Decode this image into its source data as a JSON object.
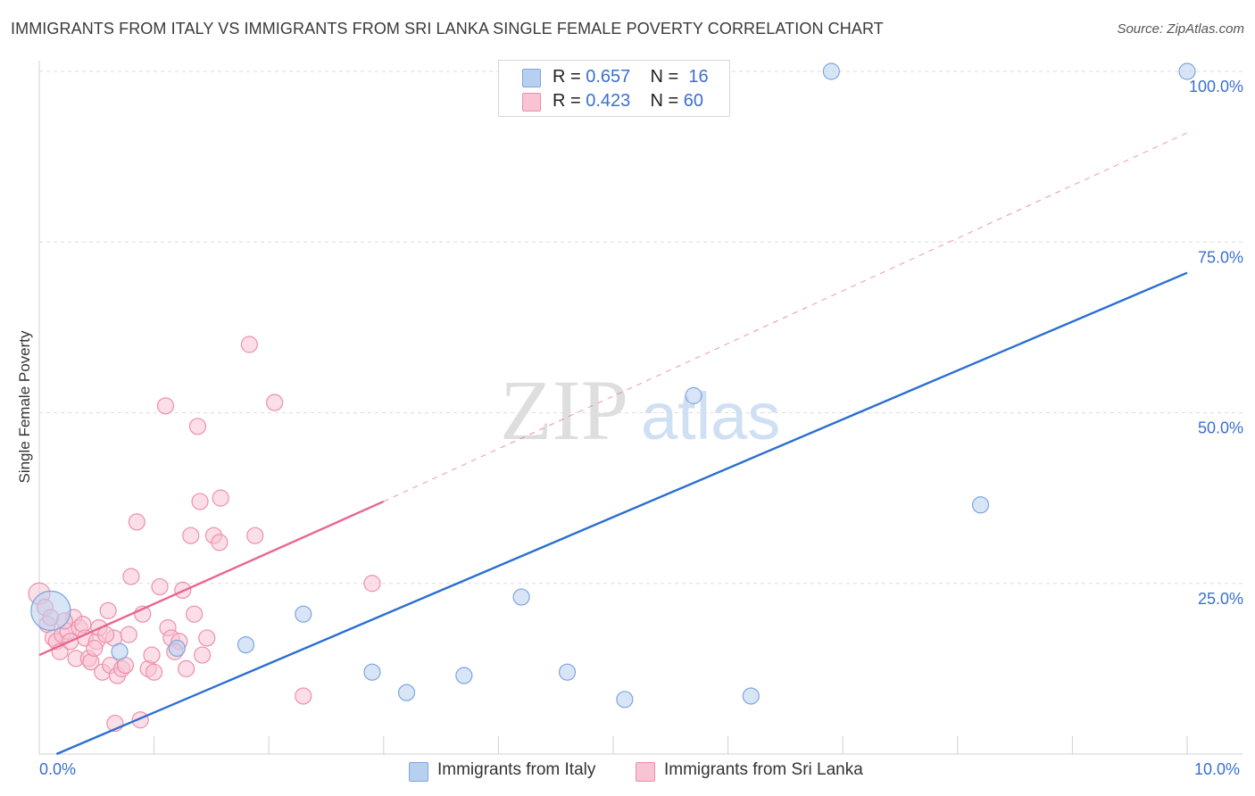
{
  "title": "IMMIGRANTS FROM ITALY VS IMMIGRANTS FROM SRI LANKA SINGLE FEMALE POVERTY CORRELATION CHART",
  "source": "Source: ZipAtlas.com",
  "watermark": {
    "zip": "ZIP",
    "atlas": "atlas"
  },
  "legend_top": {
    "rows": [
      {
        "r_label": "R =",
        "r_value": "0.657",
        "n_label": "N =",
        "n_value": "16"
      },
      {
        "r_label": "R =",
        "r_value": "0.423",
        "n_label": "N =",
        "n_value": "60"
      }
    ]
  },
  "legend_bottom": {
    "italy": "Immigrants from Italy",
    "srilanka": "Immigrants from Sri Lanka"
  },
  "colors": {
    "italy_fill": "#b8d0f0",
    "italy_stroke": "#7da6dc",
    "italy_line": "#2a6fd0",
    "srilanka_fill": "#f8c3d3",
    "srilanka_stroke": "#ec90ad",
    "srilanka_line": "#e8668f",
    "tick_text": "#3a6fd0",
    "grid": "#dedede"
  },
  "chart_data": {
    "type": "scatter",
    "title": "IMMIGRANTS FROM ITALY VS IMMIGRANTS FROM SRI LANKA SINGLE FEMALE POVERTY CORRELATION CHART",
    "xlabel": "",
    "ylabel": "Single Female Poverty",
    "xlim": [
      0,
      10
    ],
    "ylim": [
      0,
      100
    ],
    "x_tick_labels": [
      "0.0%",
      "10.0%"
    ],
    "y_ticks": [
      {
        "value": 25,
        "label": "25.0%"
      },
      {
        "value": 50,
        "label": "50.0%"
      },
      {
        "value": 75,
        "label": "75.0%"
      },
      {
        "value": 100,
        "label": "100.0%"
      }
    ],
    "series": [
      {
        "name": "Immigrants from Italy",
        "R": 0.657,
        "N": 16,
        "points": [
          [
            0.1,
            21.0,
            22
          ],
          [
            0.7,
            15.0,
            9
          ],
          [
            1.2,
            15.5,
            9
          ],
          [
            1.8,
            16.0,
            9
          ],
          [
            2.3,
            20.5,
            9
          ],
          [
            2.9,
            12.0,
            9
          ],
          [
            3.2,
            9.0,
            9
          ],
          [
            3.7,
            11.5,
            9
          ],
          [
            4.2,
            23.0,
            9
          ],
          [
            4.6,
            12.0,
            9
          ],
          [
            5.1,
            8.0,
            9
          ],
          [
            5.7,
            52.5,
            9
          ],
          [
            6.2,
            8.5,
            9
          ],
          [
            6.9,
            100.0,
            9
          ],
          [
            8.2,
            36.5,
            9
          ],
          [
            10.0,
            100.0,
            9
          ]
        ],
        "trendline": {
          "x0": 0.15,
          "y0": 0.0,
          "x1": 10.0,
          "y1": 70.5,
          "style": "solid"
        }
      },
      {
        "name": "Immigrants from Sri Lanka",
        "R": 0.423,
        "N": 60,
        "points": [
          [
            0.0,
            23.5,
            12
          ],
          [
            0.05,
            21.5,
            9
          ],
          [
            0.07,
            19.0,
            9
          ],
          [
            0.12,
            17.0,
            9
          ],
          [
            0.15,
            16.5,
            9
          ],
          [
            0.18,
            15.0,
            9
          ],
          [
            0.2,
            17.5,
            9
          ],
          [
            0.25,
            18.0,
            9
          ],
          [
            0.27,
            16.5,
            9
          ],
          [
            0.3,
            20.0,
            9
          ],
          [
            0.32,
            14.0,
            9
          ],
          [
            0.35,
            18.5,
            9
          ],
          [
            0.38,
            19.0,
            9
          ],
          [
            0.4,
            17.0,
            9
          ],
          [
            0.43,
            14.0,
            9
          ],
          [
            0.45,
            13.5,
            9
          ],
          [
            0.5,
            16.5,
            9
          ],
          [
            0.52,
            18.5,
            9
          ],
          [
            0.55,
            12.0,
            9
          ],
          [
            0.6,
            21.0,
            9
          ],
          [
            0.62,
            13.0,
            9
          ],
          [
            0.65,
            17.0,
            9
          ],
          [
            0.68,
            11.5,
            9
          ],
          [
            0.72,
            12.5,
            9
          ],
          [
            0.75,
            13.0,
            9
          ],
          [
            0.8,
            26.0,
            9
          ],
          [
            0.85,
            34.0,
            9
          ],
          [
            0.9,
            20.5,
            9
          ],
          [
            0.95,
            12.5,
            9
          ],
          [
            0.98,
            14.5,
            9
          ],
          [
            1.0,
            12.0,
            9
          ],
          [
            1.05,
            24.5,
            9
          ],
          [
            1.1,
            51.0,
            9
          ],
          [
            1.12,
            18.5,
            9
          ],
          [
            1.15,
            17.0,
            9
          ],
          [
            1.22,
            16.5,
            9
          ],
          [
            1.25,
            24.0,
            9
          ],
          [
            1.28,
            12.5,
            9
          ],
          [
            1.32,
            32.0,
            9
          ],
          [
            1.35,
            20.5,
            9
          ],
          [
            1.38,
            48.0,
            9
          ],
          [
            1.4,
            37.0,
            9
          ],
          [
            1.42,
            14.5,
            9
          ],
          [
            1.46,
            17.0,
            9
          ],
          [
            1.52,
            32.0,
            9
          ],
          [
            1.58,
            37.5,
            9
          ],
          [
            1.57,
            31.0,
            9
          ],
          [
            1.83,
            60.0,
            9
          ],
          [
            1.88,
            32.0,
            9
          ],
          [
            2.05,
            51.5,
            9
          ],
          [
            2.3,
            8.5,
            9
          ],
          [
            2.9,
            25.0,
            9
          ],
          [
            0.66,
            4.5,
            9
          ],
          [
            0.88,
            5.0,
            9
          ],
          [
            0.1,
            20.0,
            9
          ],
          [
            0.22,
            19.5,
            9
          ],
          [
            0.48,
            15.5,
            9
          ],
          [
            0.58,
            17.5,
            9
          ],
          [
            1.18,
            15.0,
            9
          ],
          [
            0.78,
            17.5,
            9
          ]
        ],
        "trendline": {
          "x0": 0.0,
          "y0": 14.5,
          "x1": 3.0,
          "y1": 37.0,
          "style": "solid"
        },
        "trendline_extension": {
          "x0": 3.0,
          "y0": 37.0,
          "x1": 10.0,
          "y1": 91.0,
          "style": "dashed"
        }
      }
    ]
  }
}
